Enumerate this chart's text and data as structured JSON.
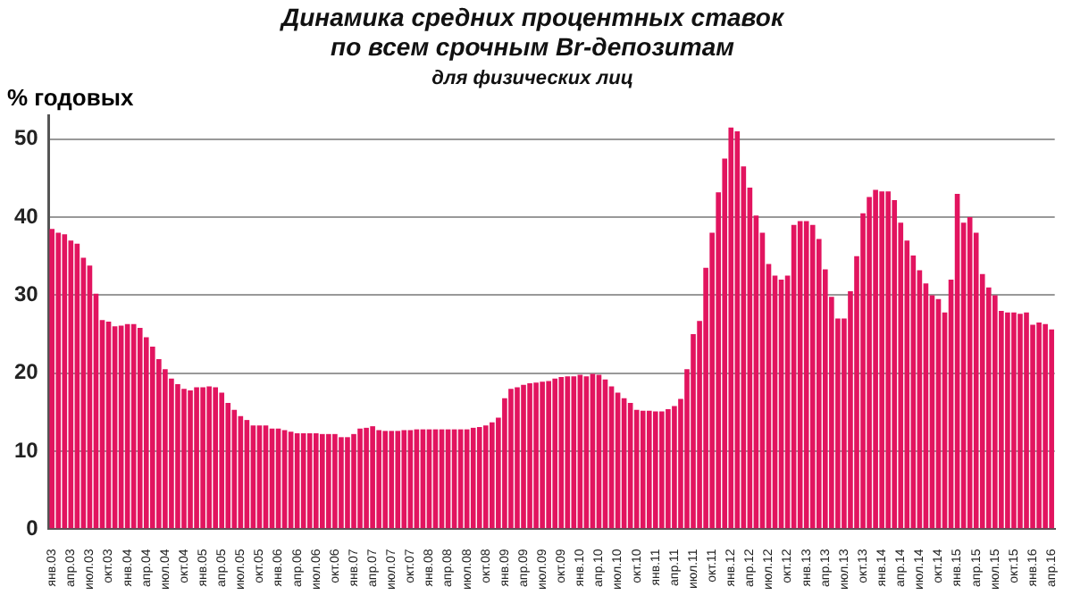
{
  "chart_data": {
    "type": "bar",
    "title": "Динамика средних процентных ставок\nпо всем срочным Br-депозитам",
    "subtitle": "для физических лиц",
    "ylabel": "% годовых",
    "categories": [
      "янв.03",
      null,
      null,
      "апр.03",
      null,
      null,
      "июл.03",
      null,
      null,
      "окт.03",
      null,
      null,
      "янв.04",
      null,
      null,
      "апр.04",
      null,
      null,
      "июл.04",
      null,
      null,
      "окт.04",
      null,
      null,
      "янв.05",
      null,
      null,
      "апр.05",
      null,
      null,
      "июл.05",
      null,
      null,
      "окт.05",
      null,
      null,
      "янв.06",
      null,
      null,
      "апр.06",
      null,
      null,
      "июл.06",
      null,
      null,
      "окт.06",
      null,
      null,
      "янв.07",
      null,
      null,
      "апр.07",
      null,
      null,
      "июл.07",
      null,
      null,
      "окт.07",
      null,
      null,
      "янв.08",
      null,
      null,
      "апр.08",
      null,
      null,
      "июл.08",
      null,
      null,
      "окт.08",
      null,
      null,
      "янв.09",
      null,
      null,
      "апр.09",
      null,
      null,
      "июл.09",
      null,
      null,
      "окт.09",
      null,
      null,
      "янв.10",
      null,
      null,
      "апр.10",
      null,
      null,
      "июл.10",
      null,
      null,
      "окт.10",
      null,
      null,
      "янв.11",
      null,
      null,
      "апр.11",
      null,
      null,
      "июл.11",
      null,
      null,
      "окт.11",
      null,
      null,
      "янв.12",
      null,
      null,
      "апр.12",
      null,
      null,
      "июл.12",
      null,
      null,
      "окт.12",
      null,
      null,
      "янв.13",
      null,
      null,
      "апр.13",
      null,
      null,
      "июл.13",
      null,
      null,
      "окт.13",
      null,
      null,
      "янв.14",
      null,
      null,
      "апр.14",
      null,
      null,
      "июл.14",
      null,
      null,
      "окт.14",
      null,
      null,
      "янв.15",
      null,
      null,
      "апр.15",
      null,
      null,
      "июл.15",
      null,
      null,
      "окт.15",
      null,
      null,
      "янв.16",
      null,
      null,
      "апр.16"
    ],
    "values": [
      38.5,
      38,
      37.8,
      37,
      36.6,
      34.8,
      33.8,
      30.2,
      26.8,
      26.6,
      26,
      26.1,
      26.3,
      26.3,
      25.8,
      24.6,
      23.4,
      21.8,
      20.5,
      19.3,
      18.6,
      18,
      17.8,
      18.2,
      18.2,
      18.3,
      18.2,
      17.5,
      16.2,
      15.3,
      14.5,
      14,
      13.3,
      13.3,
      13.3,
      12.9,
      12.9,
      12.7,
      12.5,
      12.3,
      12.3,
      12.3,
      12.3,
      12.2,
      12.2,
      12.2,
      11.8,
      11.8,
      12.2,
      12.9,
      13,
      13.2,
      12.7,
      12.6,
      12.6,
      12.6,
      12.7,
      12.7,
      12.8,
      12.8,
      12.8,
      12.8,
      12.8,
      12.8,
      12.8,
      12.8,
      12.8,
      13,
      13.1,
      13.3,
      13.7,
      14.3,
      16.8,
      18,
      18.2,
      18.5,
      18.7,
      18.8,
      18.9,
      19,
      19.3,
      19.5,
      19.6,
      19.6,
      19.8,
      19.6,
      19.9,
      19.8,
      19.2,
      18.3,
      17.5,
      16.8,
      16.2,
      15.3,
      15.2,
      15.2,
      15.1,
      15.1,
      15.4,
      15.8,
      16.7,
      20.5,
      25,
      26.7,
      33.5,
      38,
      43.2,
      47.5,
      51.5,
      51,
      46.5,
      43.8,
      40.2,
      38,
      34,
      32.5,
      32,
      32.5,
      39,
      39.5,
      39.5,
      39,
      37.2,
      33.3,
      29.8,
      27,
      27,
      30.5,
      35,
      40.5,
      42.6,
      43.5,
      43.3,
      43.3,
      42.2,
      39.3,
      37,
      35.1,
      33.2,
      31.5,
      30,
      29.5,
      27.8,
      32,
      43,
      39.3,
      40,
      38,
      32.7,
      31,
      30,
      28,
      27.8,
      27.8,
      27.6,
      27.8,
      26.2,
      26.5,
      26.3,
      25.6
    ],
    "color": "#e2145f",
    "ylim": [
      0,
      53
    ],
    "yticks": [
      0,
      10,
      20,
      30,
      40,
      50
    ],
    "grid": "y"
  }
}
